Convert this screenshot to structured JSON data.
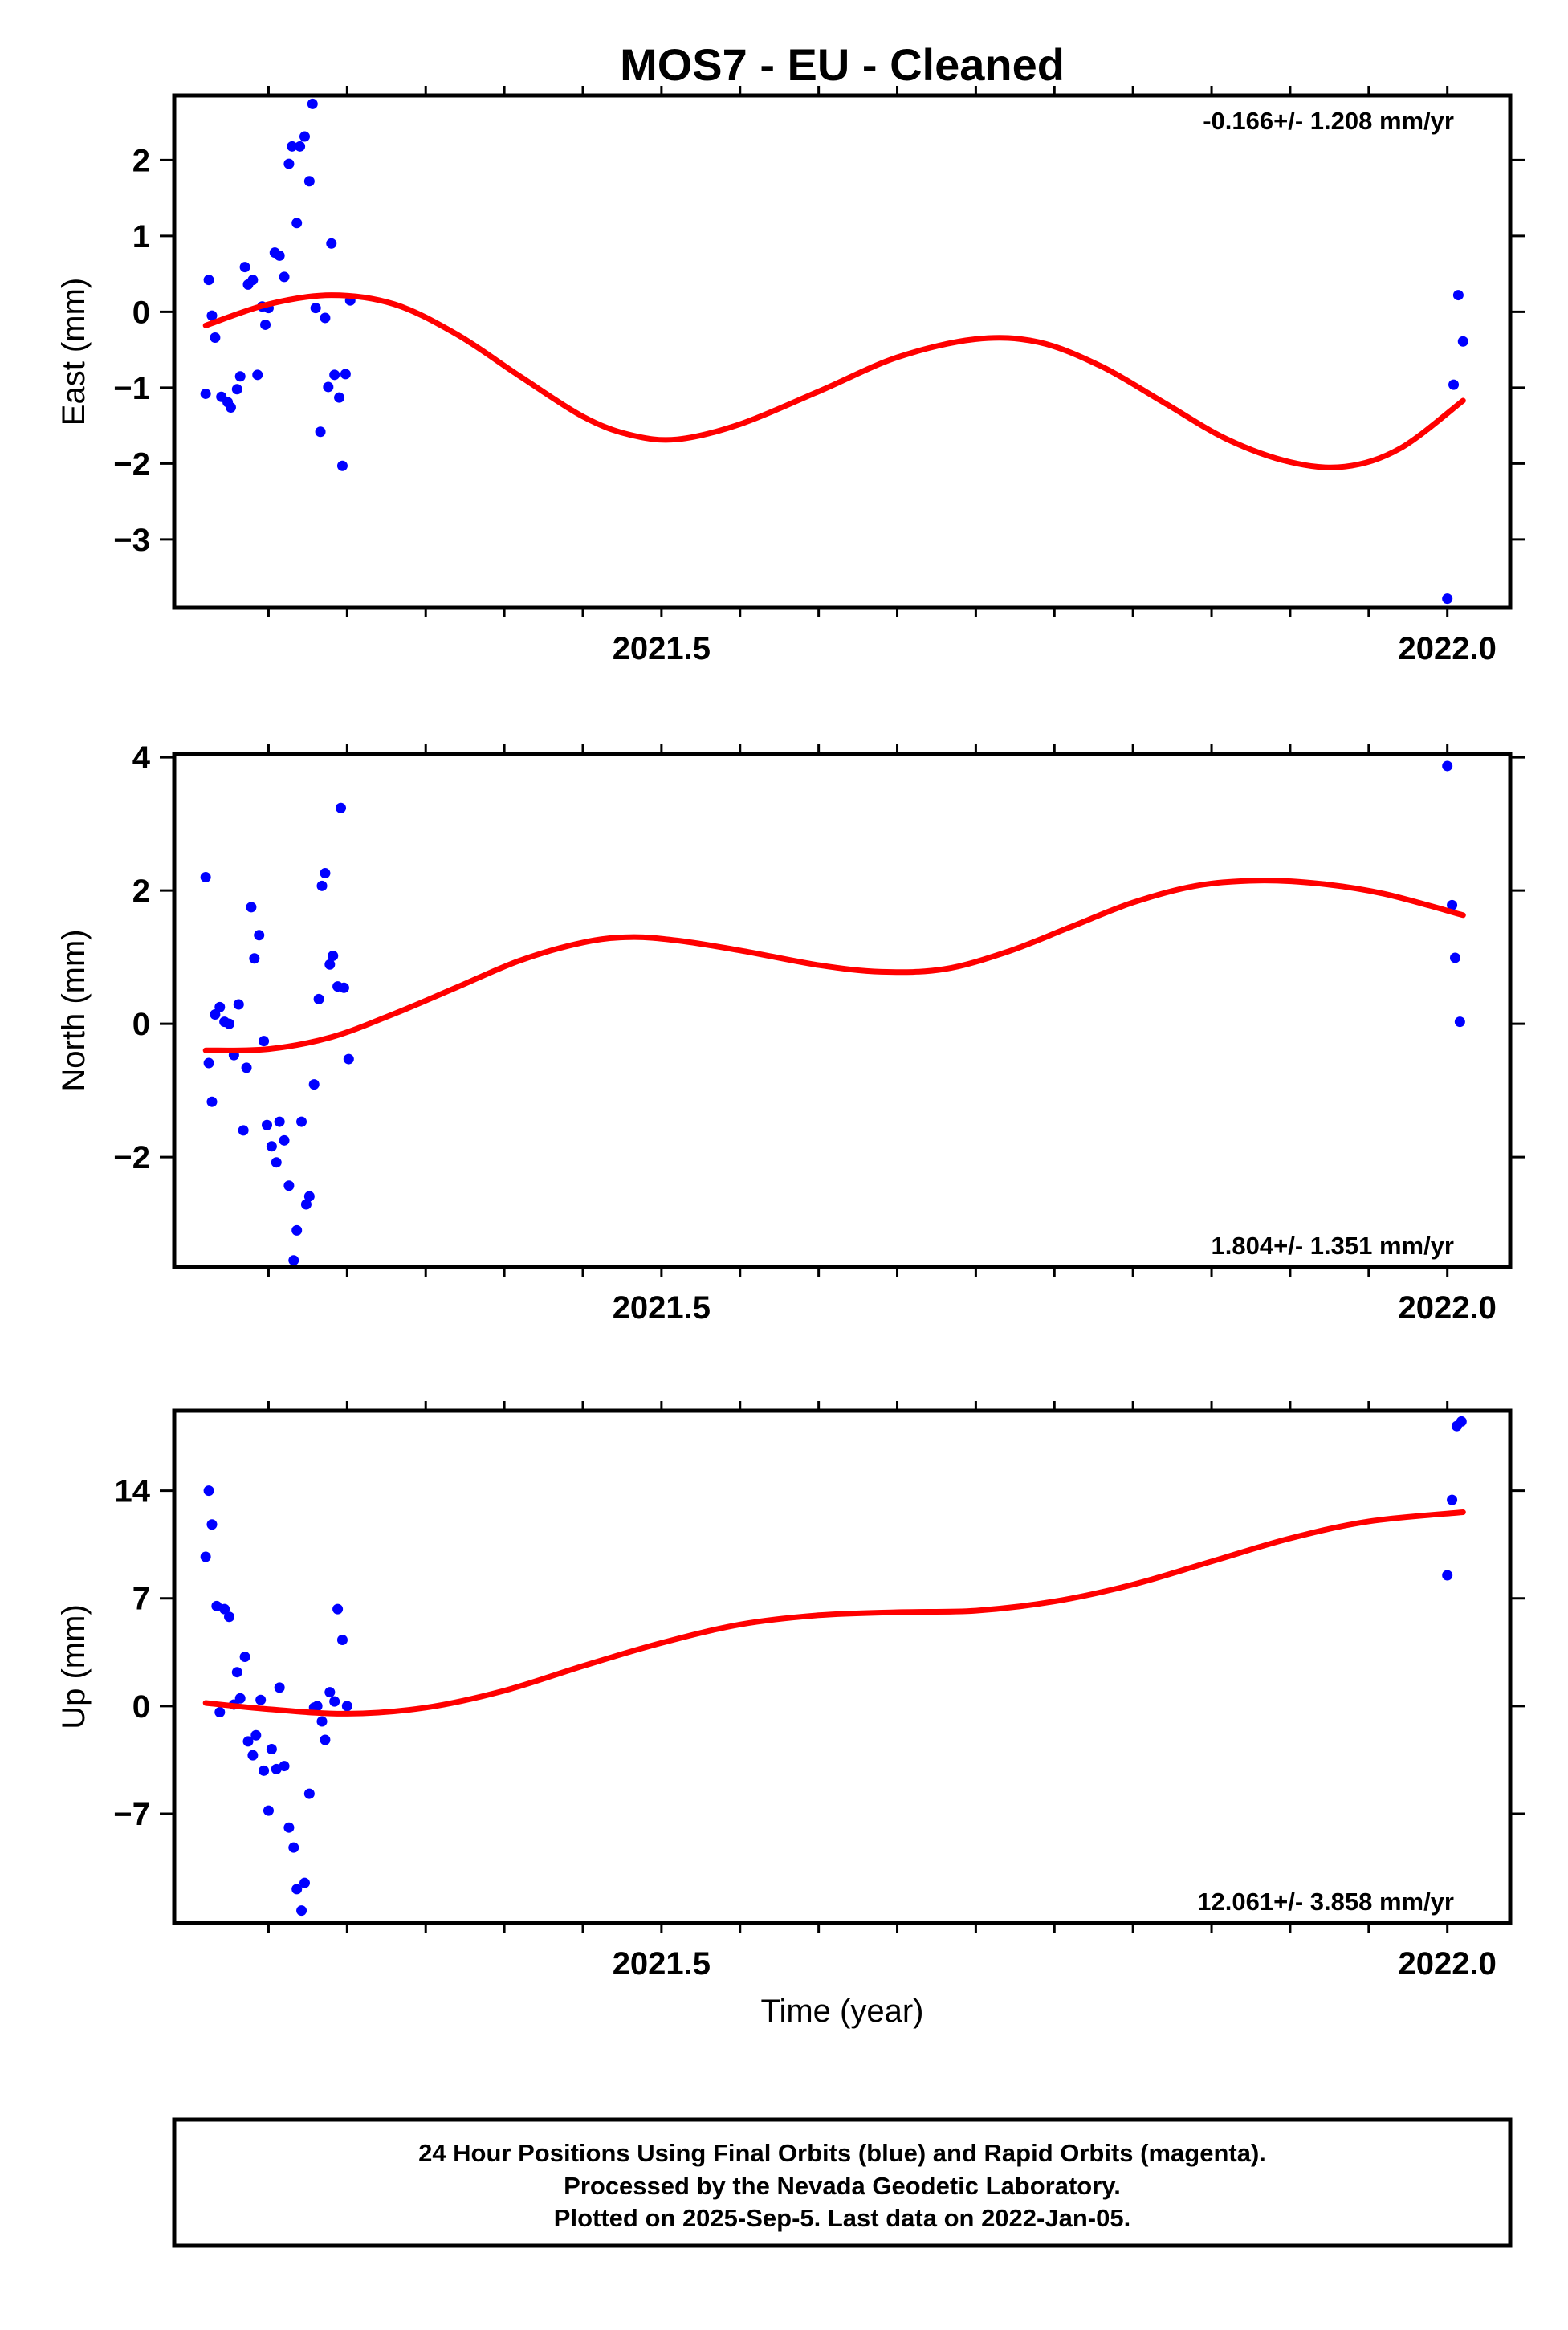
{
  "chart_data": {
    "type": "scatter",
    "title": "MOS7  - EU - Cleaned",
    "xlabel": "Time (year)",
    "x_range": [
      2021.19,
      2022.04
    ],
    "x_tick_labels": [
      {
        "value": 2021.5,
        "label": "2021.5"
      },
      {
        "value": 2022.0,
        "label": "2022.0"
      }
    ],
    "x_minor_ticks": [
      2021.25,
      2021.3,
      2021.35,
      2021.4,
      2021.45,
      2021.5,
      2021.55,
      2021.6,
      2021.65,
      2021.7,
      2021.75,
      2021.8,
      2021.85,
      2021.9,
      2021.95,
      2022.0
    ],
    "panels": [
      {
        "name": "east",
        "ylabel": "East (mm)",
        "ylim": [
          -3.9,
          2.85
        ],
        "yticks": [
          {
            "value": 2,
            "label": "2"
          },
          {
            "value": 1,
            "label": "1"
          },
          {
            "value": 0,
            "label": "0"
          },
          {
            "value": -1,
            "label": "−1"
          },
          {
            "value": -2,
            "label": "−2"
          },
          {
            "value": -3,
            "label": "−3"
          }
        ],
        "rate": "-0.166+/- 1.208 mm/yr",
        "rate_position": "top-right",
        "points": [
          [
            2021.21,
            -1.08
          ],
          [
            2021.212,
            0.42
          ],
          [
            2021.214,
            -0.05
          ],
          [
            2021.216,
            -0.34
          ],
          [
            2021.22,
            -1.12
          ],
          [
            2021.224,
            -1.19
          ],
          [
            2021.226,
            -1.26
          ],
          [
            2021.23,
            -1.02
          ],
          [
            2021.232,
            -0.85
          ],
          [
            2021.235,
            0.59
          ],
          [
            2021.237,
            0.36
          ],
          [
            2021.24,
            0.42
          ],
          [
            2021.243,
            -0.83
          ],
          [
            2021.246,
            0.07
          ],
          [
            2021.248,
            -0.17
          ],
          [
            2021.25,
            0.05
          ],
          [
            2021.254,
            0.78
          ],
          [
            2021.257,
            0.74
          ],
          [
            2021.26,
            0.46
          ],
          [
            2021.263,
            1.95
          ],
          [
            2021.265,
            2.18
          ],
          [
            2021.268,
            1.17
          ],
          [
            2021.27,
            2.18
          ],
          [
            2021.273,
            2.31
          ],
          [
            2021.276,
            1.72
          ],
          [
            2021.278,
            2.74
          ],
          [
            2021.28,
            0.05
          ],
          [
            2021.283,
            -1.58
          ],
          [
            2021.286,
            -0.08
          ],
          [
            2021.288,
            -0.99
          ],
          [
            2021.29,
            0.9
          ],
          [
            2021.292,
            -0.83
          ],
          [
            2021.295,
            -1.13
          ],
          [
            2021.297,
            -2.03
          ],
          [
            2021.299,
            -0.82
          ],
          [
            2021.302,
            0.15
          ],
          [
            2022.0,
            -3.78
          ],
          [
            2022.004,
            -0.96
          ],
          [
            2022.007,
            0.22
          ],
          [
            2022.01,
            -0.39
          ]
        ],
        "trend": [
          [
            2021.21,
            -0.18
          ],
          [
            2021.25,
            0.1
          ],
          [
            2021.29,
            0.22
          ],
          [
            2021.33,
            0.1
          ],
          [
            2021.37,
            -0.3
          ],
          [
            2021.41,
            -0.85
          ],
          [
            2021.45,
            -1.38
          ],
          [
            2021.48,
            -1.62
          ],
          [
            2021.51,
            -1.68
          ],
          [
            2021.55,
            -1.48
          ],
          [
            2021.6,
            -1.05
          ],
          [
            2021.65,
            -0.6
          ],
          [
            2021.7,
            -0.36
          ],
          [
            2021.74,
            -0.4
          ],
          [
            2021.78,
            -0.72
          ],
          [
            2021.82,
            -1.2
          ],
          [
            2021.86,
            -1.68
          ],
          [
            2021.9,
            -1.98
          ],
          [
            2021.935,
            -2.04
          ],
          [
            2021.97,
            -1.8
          ],
          [
            2022.01,
            -1.17
          ]
        ]
      },
      {
        "name": "north",
        "ylabel": "North (mm)",
        "ylim": [
          -3.65,
          4.05
        ],
        "yticks": [
          {
            "value": 4,
            "label": "4"
          },
          {
            "value": 2,
            "label": "2"
          },
          {
            "value": 0,
            "label": "0"
          },
          {
            "value": -2,
            "label": "−2"
          }
        ],
        "rate": "1.804+/- 1.351 mm/yr",
        "rate_position": "bottom-right",
        "points": [
          [
            2021.21,
            2.2
          ],
          [
            2021.212,
            -0.59
          ],
          [
            2021.214,
            -1.17
          ],
          [
            2021.216,
            0.14
          ],
          [
            2021.219,
            0.25
          ],
          [
            2021.222,
            0.03
          ],
          [
            2021.225,
            0.0
          ],
          [
            2021.228,
            -0.47
          ],
          [
            2021.231,
            0.29
          ],
          [
            2021.234,
            -1.6
          ],
          [
            2021.236,
            -0.66
          ],
          [
            2021.239,
            1.75
          ],
          [
            2021.241,
            0.98
          ],
          [
            2021.244,
            1.33
          ],
          [
            2021.247,
            -0.26
          ],
          [
            2021.249,
            -1.52
          ],
          [
            2021.252,
            -1.84
          ],
          [
            2021.255,
            -2.08
          ],
          [
            2021.257,
            -1.47
          ],
          [
            2021.26,
            -1.75
          ],
          [
            2021.263,
            -2.43
          ],
          [
            2021.266,
            -3.55
          ],
          [
            2021.268,
            -3.1
          ],
          [
            2021.271,
            -1.47
          ],
          [
            2021.274,
            -2.71
          ],
          [
            2021.276,
            -2.59
          ],
          [
            2021.279,
            -0.91
          ],
          [
            2021.282,
            0.37
          ],
          [
            2021.284,
            2.07
          ],
          [
            2021.286,
            2.26
          ],
          [
            2021.289,
            0.89
          ],
          [
            2021.291,
            1.02
          ],
          [
            2021.294,
            0.56
          ],
          [
            2021.296,
            3.24
          ],
          [
            2021.298,
            0.54
          ],
          [
            2021.301,
            -0.53
          ],
          [
            2022.0,
            3.87
          ],
          [
            2022.003,
            1.78
          ],
          [
            2022.005,
            0.99
          ],
          [
            2022.008,
            0.03
          ]
        ],
        "trend": [
          [
            2021.21,
            -0.4
          ],
          [
            2021.25,
            -0.38
          ],
          [
            2021.29,
            -0.2
          ],
          [
            2021.33,
            0.15
          ],
          [
            2021.37,
            0.55
          ],
          [
            2021.41,
            0.95
          ],
          [
            2021.45,
            1.22
          ],
          [
            2021.48,
            1.3
          ],
          [
            2021.51,
            1.25
          ],
          [
            2021.55,
            1.1
          ],
          [
            2021.6,
            0.88
          ],
          [
            2021.64,
            0.78
          ],
          [
            2021.68,
            0.82
          ],
          [
            2021.72,
            1.08
          ],
          [
            2021.76,
            1.45
          ],
          [
            2021.8,
            1.82
          ],
          [
            2021.84,
            2.07
          ],
          [
            2021.88,
            2.15
          ],
          [
            2021.92,
            2.1
          ],
          [
            2021.96,
            1.95
          ],
          [
            2022.01,
            1.63
          ]
        ]
      },
      {
        "name": "up",
        "ylabel": "Up (mm)",
        "ylim": [
          -14.1,
          19.2
        ],
        "yticks": [
          {
            "value": 14,
            "label": "14"
          },
          {
            "value": 7,
            "label": "7"
          },
          {
            "value": 0,
            "label": "0"
          },
          {
            "value": -7,
            "label": "−7"
          }
        ],
        "rate": "12.061+/- 3.858 mm/yr",
        "rate_position": "bottom-right",
        "points": [
          [
            2021.21,
            9.7
          ],
          [
            2021.212,
            14.0
          ],
          [
            2021.214,
            11.8
          ],
          [
            2021.217,
            6.5
          ],
          [
            2021.219,
            -0.4
          ],
          [
            2021.222,
            6.3
          ],
          [
            2021.225,
            5.8
          ],
          [
            2021.228,
            0.1
          ],
          [
            2021.23,
            2.2
          ],
          [
            2021.232,
            0.5
          ],
          [
            2021.235,
            3.2
          ],
          [
            2021.237,
            -2.3
          ],
          [
            2021.24,
            -3.2
          ],
          [
            2021.242,
            -1.9
          ],
          [
            2021.245,
            0.4
          ],
          [
            2021.247,
            -4.2
          ],
          [
            2021.25,
            -6.8
          ],
          [
            2021.252,
            -2.8
          ],
          [
            2021.255,
            -4.1
          ],
          [
            2021.257,
            1.2
          ],
          [
            2021.26,
            -3.9
          ],
          [
            2021.263,
            -7.9
          ],
          [
            2021.266,
            -9.2
          ],
          [
            2021.268,
            -11.9
          ],
          [
            2021.271,
            -13.3
          ],
          [
            2021.273,
            -11.5
          ],
          [
            2021.276,
            -5.7
          ],
          [
            2021.279,
            -0.1
          ],
          [
            2021.281,
            0.0
          ],
          [
            2021.284,
            -1.0
          ],
          [
            2021.286,
            -2.2
          ],
          [
            2021.289,
            0.9
          ],
          [
            2021.292,
            0.3
          ],
          [
            2021.294,
            6.3
          ],
          [
            2021.297,
            4.3
          ],
          [
            2021.3,
            0.0
          ],
          [
            2022.0,
            8.5
          ],
          [
            2022.003,
            13.4
          ],
          [
            2022.006,
            18.2
          ],
          [
            2022.009,
            18.5
          ]
        ],
        "trend": [
          [
            2021.21,
            0.2
          ],
          [
            2021.25,
            -0.2
          ],
          [
            2021.3,
            -0.5
          ],
          [
            2021.35,
            -0.1
          ],
          [
            2021.4,
            1.0
          ],
          [
            2021.45,
            2.6
          ],
          [
            2021.5,
            4.1
          ],
          [
            2021.55,
            5.3
          ],
          [
            2021.6,
            5.9
          ],
          [
            2021.65,
            6.1
          ],
          [
            2021.7,
            6.2
          ],
          [
            2021.75,
            6.8
          ],
          [
            2021.8,
            7.9
          ],
          [
            2021.85,
            9.4
          ],
          [
            2021.9,
            10.9
          ],
          [
            2021.95,
            12.0
          ],
          [
            2022.01,
            12.6
          ]
        ]
      }
    ],
    "footer": [
      "24 Hour Positions Using Final Orbits (blue) and Rapid Orbits (magenta).",
      "Processed by the Nevada Geodetic Laboratory.",
      "Plotted on 2025-Sep-5. Last data on 2022-Jan-05."
    ],
    "colors": {
      "points": "#0000ff",
      "trend": "#ff0000",
      "frame": "#000000"
    }
  }
}
